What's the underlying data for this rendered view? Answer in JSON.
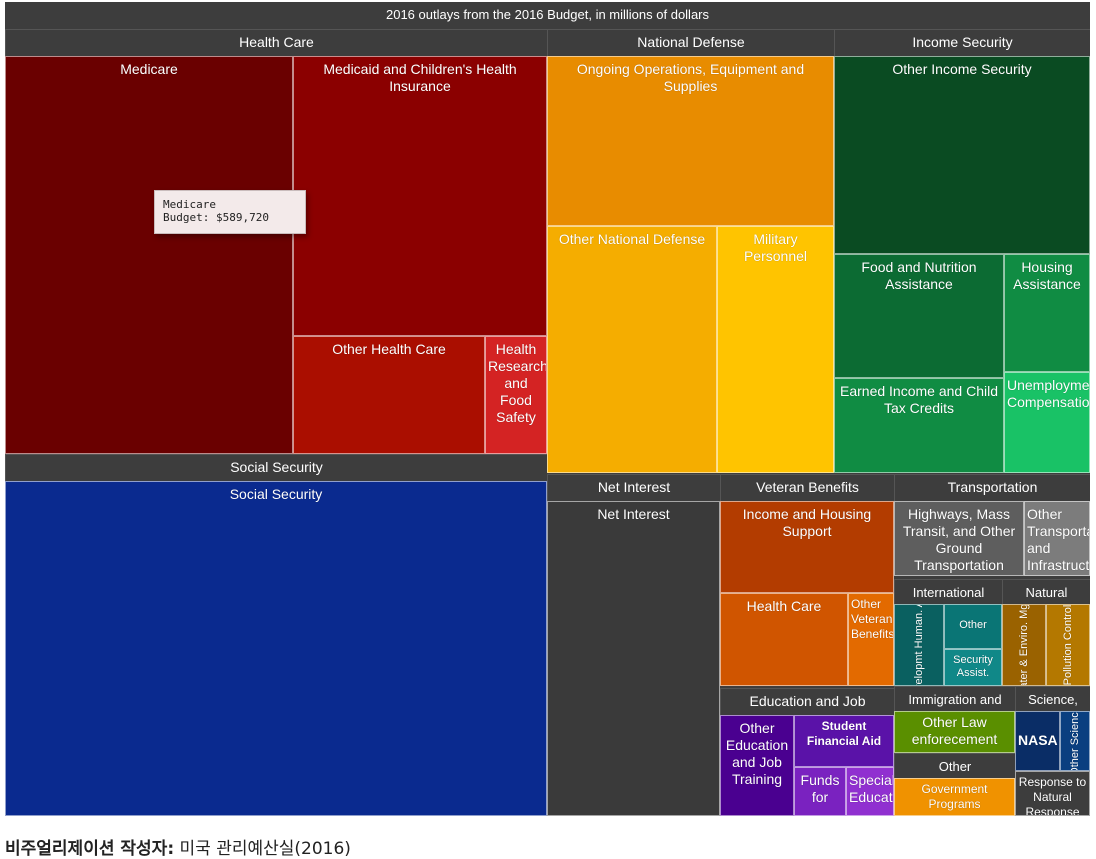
{
  "chart_data": {
    "type": "treemap",
    "title": "2016 outlays from the 2016 Budget, in millions of dollars",
    "groups": [
      {
        "name": "Health Care",
        "children": [
          {
            "name": "Medicare",
            "value": 589720
          },
          {
            "name": "Medicaid and Children's Health Insurance"
          },
          {
            "name": "Other Health Care"
          },
          {
            "name": "Health Research and Food Safety"
          }
        ]
      },
      {
        "name": "Social Security",
        "children": [
          {
            "name": "Social Security"
          }
        ]
      },
      {
        "name": "National Defense",
        "children": [
          {
            "name": "Ongoing Operations, Equipment and Supplies"
          },
          {
            "name": "Other National Defense"
          },
          {
            "name": "Military Personnel"
          }
        ]
      },
      {
        "name": "Income Security",
        "children": [
          {
            "name": "Other Income Security"
          },
          {
            "name": "Food and Nutrition Assistance"
          },
          {
            "name": "Housing Assistance"
          },
          {
            "name": "Earned Income and Child Tax Credits"
          },
          {
            "name": "Unemployment Compensation"
          }
        ]
      },
      {
        "name": "Net Interest",
        "children": [
          {
            "name": "Net Interest"
          }
        ]
      },
      {
        "name": "Veteran Benefits",
        "children": [
          {
            "name": "Income and Housing Support"
          },
          {
            "name": "Health Care"
          },
          {
            "name": "Other Veteran Benefits"
          }
        ]
      },
      {
        "name": "Transportation",
        "children": [
          {
            "name": "Highways, Mass Transit, and Other Ground Transportation"
          },
          {
            "name": "Other Transportation and Infrastructure"
          }
        ]
      },
      {
        "name": "International",
        "children": [
          {
            "name": "Developmt Human. Asst"
          },
          {
            "name": "Other"
          },
          {
            "name": "Security Assist."
          }
        ]
      },
      {
        "name": "Natural",
        "children": [
          {
            "name": "Water & Enviro. Mgmt"
          },
          {
            "name": "Pollution Control"
          }
        ]
      },
      {
        "name": "Education and Job",
        "children": [
          {
            "name": "Other Education and Job Training"
          },
          {
            "name": "Student Financial Aid"
          },
          {
            "name": "Funds for"
          },
          {
            "name": "Special Education"
          }
        ]
      },
      {
        "name": "Immigration and",
        "children": [
          {
            "name": "Other Law enforecement"
          }
        ]
      },
      {
        "name": "Other",
        "children": [
          {
            "name": "Government Programs"
          }
        ]
      },
      {
        "name": "Science,",
        "children": [
          {
            "name": "NASA"
          },
          {
            "name": "Other Science"
          }
        ]
      },
      {
        "name": "Response to Natural Response"
      }
    ]
  },
  "tooltip": {
    "line1": "Medicare",
    "line2": "Budget: $589,720"
  },
  "caption": {
    "bold": "비주얼리제이션 작성자:",
    "rest": " 미국 관리예산실(2016)"
  },
  "colors": {
    "header": "#3d3d3d",
    "health": [
      "#6a0000",
      "#8b0000",
      "#aa0e00",
      "#d42323"
    ],
    "social_security": "#0a2a8f",
    "defense": [
      "#e88c00",
      "#f5ad00",
      "#ffc400"
    ],
    "income": [
      "#0a4b22",
      "#0c6b33",
      "#108c43",
      "#13a752",
      "#19c266"
    ],
    "net_interest": "#3a3a3a",
    "veteran": [
      "#b33c00",
      "#d05500",
      "#e36a00"
    ],
    "transportation": [
      "#5e5e5e",
      "#7c7c7c"
    ],
    "international": [
      "#0a6060",
      "#0a7575",
      "#108888"
    ],
    "natural": [
      "#9a6200",
      "#b47800"
    ],
    "education": [
      "#4a0090",
      "#5a12a8",
      "#7a22c0",
      "#9030d0"
    ],
    "law": "#5a8f00",
    "other_gov": "#f09200",
    "science": [
      "#0a2d66",
      "#0a3f80"
    ]
  }
}
